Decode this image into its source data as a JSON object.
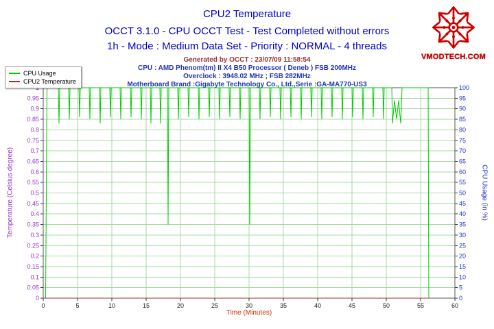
{
  "header": {
    "title": "CPU2 Temperature",
    "line2": "OCCT 3.1.0 - CPU OCCT Test - Test Completed without errors",
    "line3": "1h - Mode : Medium Data Set - Priority : NORMAL - 4 threads",
    "generated": "Generated by OCCT : 23/07/09 11:58:54",
    "cpu": "CPU : AMD Phenom(tm) II X4 B50 Processor ( Deneb ) FSB 200MHz",
    "overclock": "Overclock : 3948.02 MHz ; FSB 282MHz",
    "motherboard": "Motherboard Brand :Gigabyte Technology Co., Ltd.,Serie :GA-MA770-US3"
  },
  "logo": {
    "text": "VMODTECH.COM"
  },
  "legend": {
    "items": [
      {
        "label": "CPU Usage"
      },
      {
        "label": "CPU2 Temperature"
      }
    ]
  },
  "colors": {
    "title_blue": "#0000CC",
    "info_blue": "#2233BB",
    "generated_brown": "#993333",
    "logo_red": "#CC0000",
    "left_axis_purple": "#9933CC",
    "right_axis_blue": "#2233CC",
    "x_title_red": "#CC3300"
  },
  "chart_data": {
    "type": "line",
    "title": "CPU2 Temperature",
    "xlabel": "Time (Minutes)",
    "ylabel_left": "Temperature (Celsius degree)",
    "ylabel_right": "CPU Usage (in %)",
    "xlim": [
      0,
      60
    ],
    "ylim_left": [
      0,
      1
    ],
    "ylim_right": [
      0,
      100
    ],
    "x_ticks": [
      "0",
      "5",
      "10",
      "15",
      "20",
      "25",
      "30",
      "35",
      "40",
      "45",
      "50",
      "55",
      "60"
    ],
    "left_ticks": [
      "1",
      "0.95",
      "0.9",
      "0.85",
      "0.8",
      "0.75",
      "0.7",
      "0.65",
      "0.6",
      "0.55",
      "0.5",
      "0.45",
      "0.4",
      "0.35",
      "0.3",
      "0.25",
      "0.2",
      "0.15",
      "0.1",
      "0.05",
      "0"
    ],
    "right_ticks": [
      "100",
      "95",
      "90",
      "85",
      "80",
      "75",
      "70",
      "65",
      "60",
      "55",
      "50",
      "45",
      "40",
      "35",
      "30",
      "25",
      "20",
      "15",
      "10",
      "5",
      "0"
    ],
    "grid": true,
    "grid_color": "#A6D9A6",
    "border_color": "#555555",
    "tick_mark_color": "#333333",
    "x_tick_color": "#222222",
    "legend_position": "top-left",
    "series": [
      {
        "name": "CPU Usage",
        "axis": "right",
        "color": "#00CC00",
        "points": [
          [
            0.35,
            0
          ],
          [
            0.55,
            100
          ],
          [
            2.2,
            100
          ],
          [
            2.3,
            83
          ],
          [
            2.4,
            100
          ],
          [
            3.7,
            100
          ],
          [
            3.8,
            85
          ],
          [
            3.9,
            100
          ],
          [
            5.2,
            100
          ],
          [
            5.3,
            86
          ],
          [
            5.4,
            100
          ],
          [
            6.7,
            100
          ],
          [
            6.8,
            85
          ],
          [
            6.9,
            100
          ],
          [
            8.2,
            100
          ],
          [
            8.3,
            83
          ],
          [
            8.4,
            100
          ],
          [
            9.7,
            100
          ],
          [
            9.8,
            86
          ],
          [
            9.9,
            100
          ],
          [
            11.2,
            100
          ],
          [
            11.3,
            85
          ],
          [
            11.4,
            100
          ],
          [
            12.7,
            100
          ],
          [
            12.8,
            86
          ],
          [
            12.9,
            100
          ],
          [
            14.2,
            100
          ],
          [
            14.3,
            85
          ],
          [
            14.4,
            100
          ],
          [
            15.6,
            100
          ],
          [
            15.7,
            83
          ],
          [
            15.8,
            100
          ],
          [
            17.0,
            100
          ],
          [
            17.1,
            83
          ],
          [
            17.2,
            100
          ],
          [
            18.1,
            100
          ],
          [
            18.2,
            35
          ],
          [
            18.3,
            100
          ],
          [
            19.6,
            100
          ],
          [
            19.7,
            85
          ],
          [
            19.8,
            100
          ],
          [
            21.1,
            100
          ],
          [
            21.2,
            86
          ],
          [
            21.3,
            100
          ],
          [
            22.6,
            100
          ],
          [
            22.7,
            85
          ],
          [
            22.8,
            100
          ],
          [
            24.1,
            100
          ],
          [
            24.2,
            86
          ],
          [
            24.3,
            100
          ],
          [
            25.6,
            100
          ],
          [
            25.7,
            85
          ],
          [
            25.8,
            100
          ],
          [
            27.1,
            100
          ],
          [
            27.2,
            86
          ],
          [
            27.3,
            100
          ],
          [
            28.6,
            100
          ],
          [
            28.7,
            85
          ],
          [
            28.8,
            100
          ],
          [
            30.0,
            100
          ],
          [
            30.1,
            35
          ],
          [
            30.2,
            100
          ],
          [
            31.5,
            100
          ],
          [
            31.6,
            85
          ],
          [
            31.7,
            100
          ],
          [
            33.0,
            100
          ],
          [
            33.1,
            86
          ],
          [
            33.2,
            100
          ],
          [
            34.5,
            100
          ],
          [
            34.6,
            85
          ],
          [
            34.7,
            100
          ],
          [
            36.0,
            100
          ],
          [
            36.1,
            86
          ],
          [
            36.2,
            100
          ],
          [
            37.5,
            100
          ],
          [
            37.6,
            85
          ],
          [
            37.7,
            100
          ],
          [
            39.0,
            100
          ],
          [
            39.1,
            86
          ],
          [
            39.2,
            100
          ],
          [
            40.5,
            100
          ],
          [
            40.6,
            85
          ],
          [
            40.7,
            100
          ],
          [
            42.0,
            100
          ],
          [
            42.1,
            86
          ],
          [
            42.2,
            100
          ],
          [
            43.5,
            100
          ],
          [
            43.6,
            85
          ],
          [
            43.7,
            100
          ],
          [
            45.0,
            100
          ],
          [
            45.1,
            86
          ],
          [
            45.2,
            100
          ],
          [
            46.5,
            100
          ],
          [
            46.6,
            85
          ],
          [
            46.7,
            100
          ],
          [
            48.0,
            100
          ],
          [
            48.1,
            86
          ],
          [
            48.2,
            100
          ],
          [
            49.5,
            100
          ],
          [
            49.6,
            85
          ],
          [
            49.7,
            100
          ],
          [
            50.8,
            100
          ],
          [
            50.9,
            83
          ],
          [
            51.2,
            94
          ],
          [
            51.5,
            85
          ],
          [
            51.8,
            94
          ],
          [
            52.1,
            83
          ],
          [
            52.3,
            100
          ],
          [
            56.1,
            100
          ],
          [
            56.2,
            0
          ]
        ]
      },
      {
        "name": "CPU2 Temperature",
        "axis": "left",
        "color": "#993333",
        "points": [
          [
            0,
            0
          ],
          [
            56.2,
            0
          ]
        ]
      }
    ]
  }
}
